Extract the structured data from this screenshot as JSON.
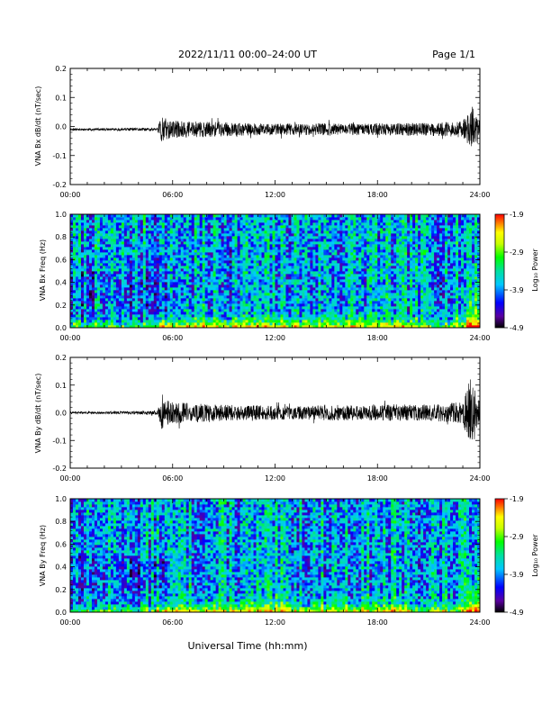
{
  "header": {
    "title": "2022/11/11  00:00–24:00 UT",
    "page": "Page 1/1"
  },
  "x_axis": {
    "label": "Universal Time (hh:mm)",
    "ticks": [
      "00:00",
      "06:00",
      "12:00",
      "18:00",
      "24:00"
    ]
  },
  "colorbar": {
    "label": "Log₁₀ Power",
    "ticks": [
      "-1.9",
      "-2.9",
      "-3.9",
      "-4.9"
    ],
    "range": [
      -4.9,
      -1.9
    ],
    "colormap": [
      "#000000",
      "#5a00a0",
      "#0000ff",
      "#00c8ff",
      "#00e0a0",
      "#00ff00",
      "#c8ff00",
      "#ffff00",
      "#ff8000",
      "#ff0000"
    ]
  },
  "chart_data": [
    {
      "type": "line",
      "id": "bx_waveform",
      "ylabel": "VNA Bx dB/dt (nT/sec)",
      "xlim": [
        0,
        24
      ],
      "ylim": [
        -0.2,
        0.2
      ],
      "yticks": [
        "0.2",
        "0.1",
        "0.0",
        "-0.1",
        "-0.2"
      ],
      "x_unit": "hours UT",
      "envelope": {
        "x": [
          0,
          2,
          4,
          5.1,
          5.3,
          6,
          7,
          8,
          9,
          10,
          11,
          12,
          13,
          14,
          15,
          16,
          17,
          18,
          19,
          20,
          21,
          22,
          23,
          23.3,
          23.5,
          23.7,
          24
        ],
        "amplitude": [
          0.004,
          0.004,
          0.005,
          0.006,
          0.045,
          0.03,
          0.028,
          0.026,
          0.024,
          0.022,
          0.02,
          0.02,
          0.02,
          0.02,
          0.022,
          0.02,
          0.02,
          0.02,
          0.021,
          0.022,
          0.022,
          0.024,
          0.028,
          0.055,
          0.09,
          0.06,
          0.03
        ]
      },
      "offset": -0.01
    },
    {
      "type": "heatmap",
      "id": "bx_spectrogram",
      "ylabel": "VNA Bx Freq (Hz)",
      "xlim": [
        0,
        24
      ],
      "ylim": [
        0.0,
        1.0
      ],
      "yticks": [
        "1.0",
        "0.8",
        "0.6",
        "0.4",
        "0.2",
        "0.0"
      ],
      "z_range": [
        -4.9,
        -1.9
      ],
      "seed": 7
    },
    {
      "type": "line",
      "id": "by_waveform",
      "ylabel": "VNA By dB/dt (nT/sec)",
      "xlim": [
        0,
        24
      ],
      "ylim": [
        -0.2,
        0.2
      ],
      "yticks": [
        "0.2",
        "0.1",
        "0.0",
        "-0.1",
        "-0.2"
      ],
      "x_unit": "hours UT",
      "envelope": {
        "x": [
          0,
          2,
          4,
          5.1,
          5.3,
          6,
          7,
          8,
          9,
          10,
          11,
          12,
          13,
          14,
          15,
          16,
          17,
          18,
          19,
          20,
          21,
          22,
          23,
          23.3,
          23.5,
          23.7,
          24
        ],
        "amplitude": [
          0.004,
          0.004,
          0.006,
          0.008,
          0.06,
          0.04,
          0.036,
          0.032,
          0.03,
          0.028,
          0.026,
          0.026,
          0.024,
          0.024,
          0.03,
          0.028,
          0.026,
          0.028,
          0.03,
          0.03,
          0.03,
          0.034,
          0.04,
          0.1,
          0.15,
          0.09,
          0.04
        ]
      },
      "offset": 0.0
    },
    {
      "type": "heatmap",
      "id": "by_spectrogram",
      "ylabel": "VNA By Freq (Hz)",
      "xlim": [
        0,
        24
      ],
      "ylim": [
        0.0,
        1.0
      ],
      "yticks": [
        "1.0",
        "0.8",
        "0.6",
        "0.4",
        "0.2",
        "0.0"
      ],
      "z_range": [
        -4.9,
        -1.9
      ],
      "seed": 13
    }
  ]
}
